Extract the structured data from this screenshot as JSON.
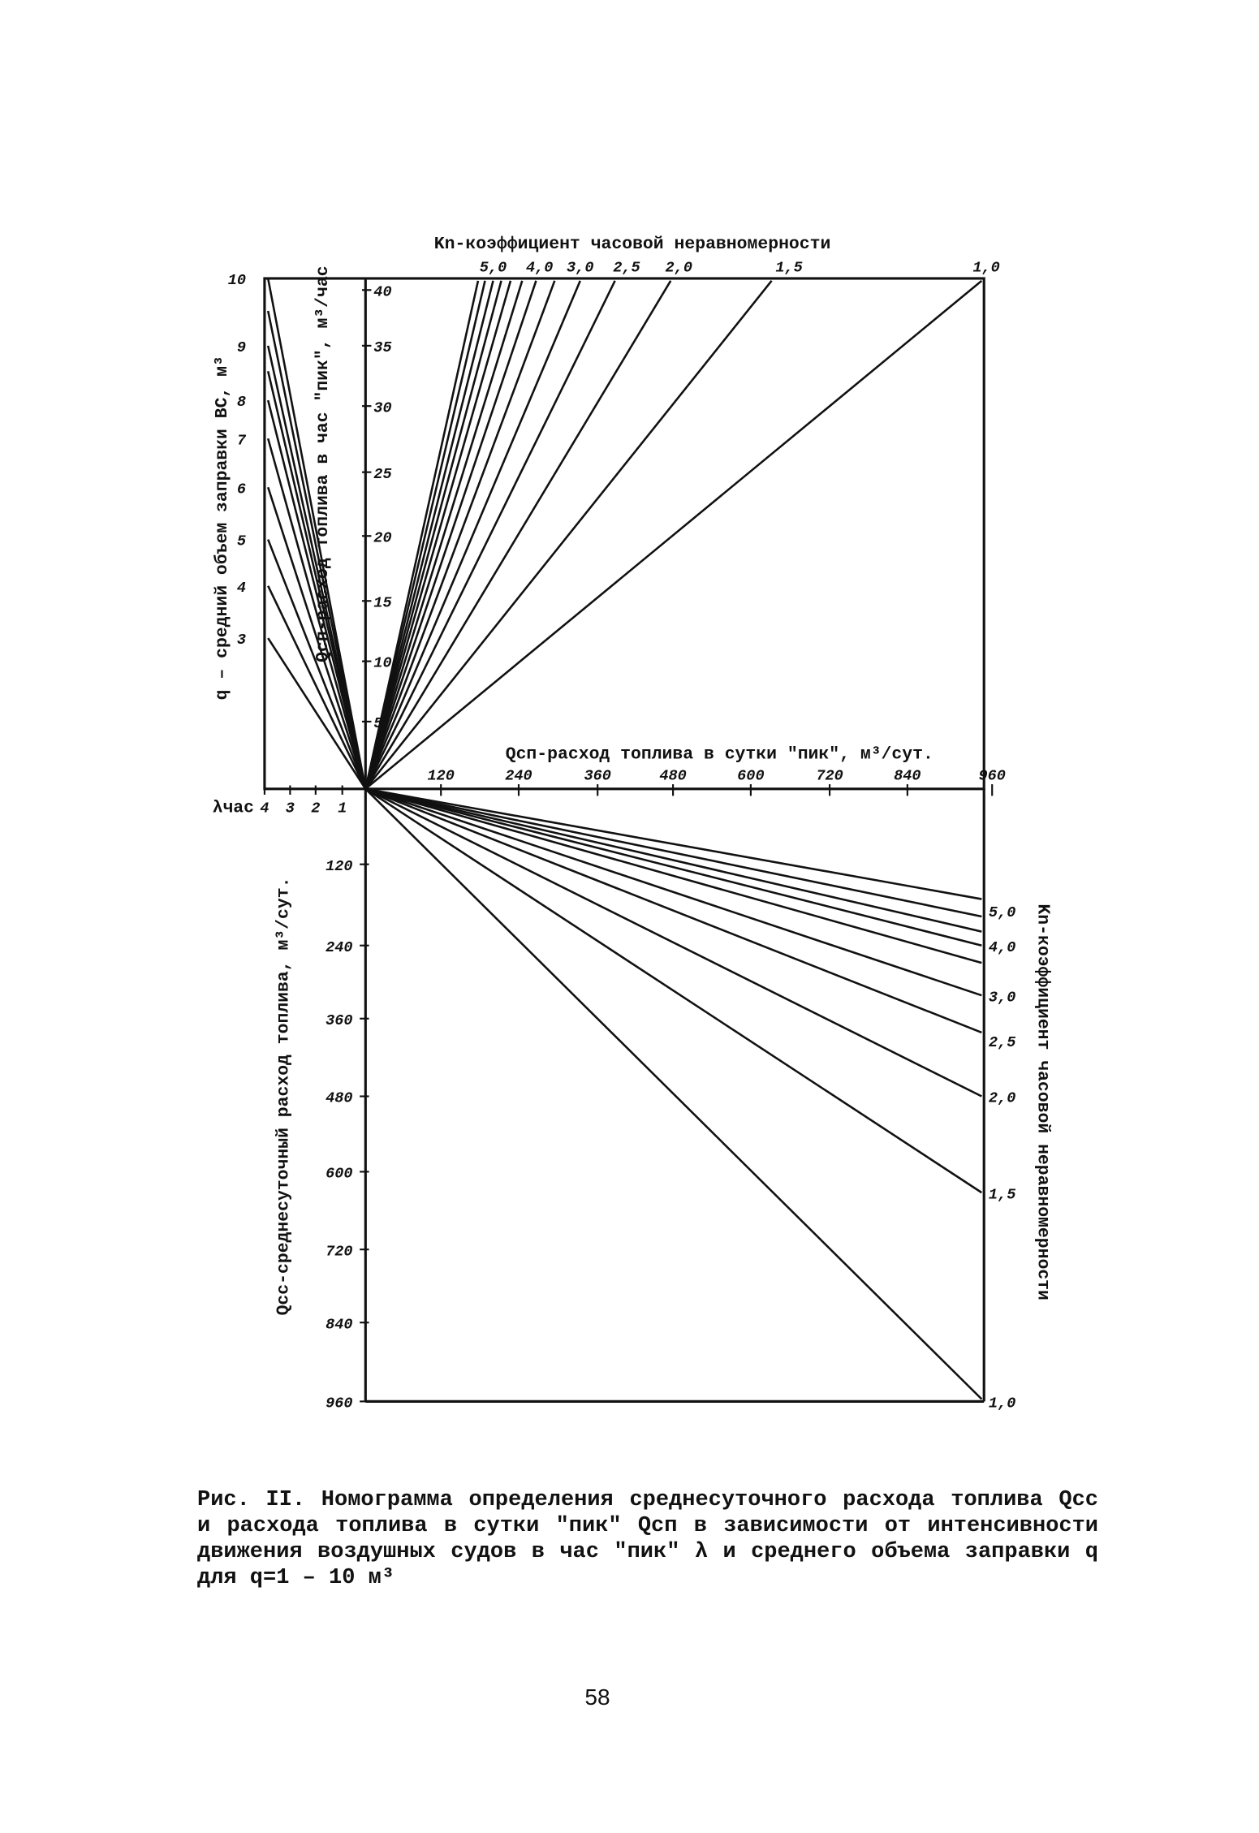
{
  "nomogram": {
    "top_axis_title": "Kn-коэффициент часовой неравномерности",
    "top_axis_ticks": [
      "5,0",
      "4,0",
      "3,0",
      "2,5",
      "2,0",
      "1,5",
      "1,0"
    ],
    "left_axis_title": "q – средний объем заправки ВС, м³",
    "left_axis_ticks": [
      "10",
      "9",
      "8",
      "7",
      "6",
      "5",
      "4",
      "3"
    ],
    "peak_hour_axis_title": "Qсп-расход топлива в час \"пик\", м³/час",
    "peak_hour_ticks": [
      "40",
      "35",
      "30",
      "25",
      "20",
      "15",
      "10",
      "5"
    ],
    "peak_day_axis_title": "Qсп-расход топлива в сутки \"пик\", м³/сут.",
    "peak_day_ticks": [
      "120",
      "240",
      "360",
      "480",
      "600",
      "720",
      "840",
      "960"
    ],
    "lambda_label": "λчас",
    "lambda_ticks": [
      "4",
      "3",
      "2",
      "1"
    ],
    "daily_axis_title": "Qcc-среднесуточный расход топлива, м³/сут.",
    "daily_ticks": [
      "120",
      "240",
      "360",
      "480",
      "600",
      "720",
      "840",
      "960"
    ],
    "right_axis_title": "Kn-коэффициент часовой неравномерности",
    "right_axis_ticks": [
      "5,0",
      "4,0",
      "3,0",
      "2,5",
      "2,0",
      "1,5",
      "1,0"
    ]
  },
  "caption": "Рис. II. Номограмма определения среднесуточного расхода топлива Qcc и расхода топлива в сутки \"пик\" Qсп в зависимости от интенсивности движения воздушных судов в час \"пик\" λ и среднего объема заправки q для q=1 – 10 м³",
  "page_number": "58"
}
